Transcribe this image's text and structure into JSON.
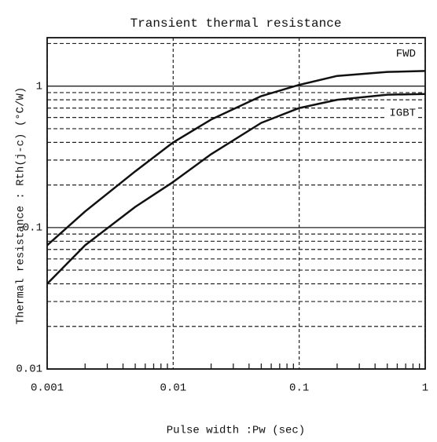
{
  "chart_data": {
    "type": "line",
    "title": "Transient thermal resistance",
    "x_label": "Pulse width :Pw (sec)",
    "y_label": "Thermal resistance : Rth(j-c)   (°C/W)",
    "log_x": true,
    "log_y": true,
    "x": [
      0.001,
      0.002,
      0.005,
      0.01,
      0.02,
      0.05,
      0.1,
      0.2,
      0.5,
      1
    ],
    "series": [
      {
        "name": "FWD",
        "color": "#111111",
        "values": [
          0.075,
          0.13,
          0.25,
          0.4,
          0.58,
          0.85,
          1.02,
          1.18,
          1.26,
          1.28
        ]
      },
      {
        "name": "IGBT",
        "color": "#111111",
        "values": [
          0.04,
          0.075,
          0.14,
          0.21,
          0.33,
          0.55,
          0.7,
          0.8,
          0.87,
          0.88
        ]
      }
    ],
    "xlim": [
      0.001,
      1
    ],
    "ylim": [
      0.01,
      2.2
    ],
    "xticks": [
      0.001,
      0.01,
      0.1,
      1
    ],
    "yticks": [
      0.01,
      0.1,
      1
    ],
    "x_minor_ticks": [
      0.002,
      0.003,
      0.004,
      0.005,
      0.006,
      0.007,
      0.008,
      0.009,
      0.02,
      0.03,
      0.04,
      0.05,
      0.06,
      0.07,
      0.08,
      0.09,
      0.2,
      0.3,
      0.4,
      0.5,
      0.6,
      0.7,
      0.8,
      0.9
    ],
    "y_minor_ticks": [
      0.02,
      0.03,
      0.04,
      0.05,
      0.06,
      0.07,
      0.08,
      0.09,
      0.2,
      0.3,
      0.4,
      0.5,
      0.6,
      0.7,
      0.8,
      0.9,
      2
    ],
    "grid": true
  }
}
